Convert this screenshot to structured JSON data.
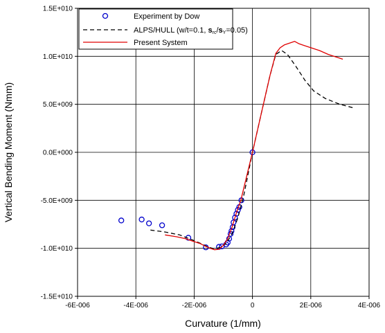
{
  "chart_data": {
    "type": "line",
    "xlabel": "Curvature (1/mm)",
    "ylabel": "Vertical Bending Moment (Nmm)",
    "xlim": [
      -6e-06,
      4e-06
    ],
    "ylim": [
      -15000000000.0,
      15000000000.0
    ],
    "x_ticks": [
      -6e-06,
      -4e-06,
      -2e-06,
      0,
      2e-06,
      4e-06
    ],
    "x_tick_labels": [
      "-6E-006",
      "-4E-006",
      "-2E-006",
      "0",
      "2E-006",
      "4E-006"
    ],
    "y_ticks": [
      -15000000000.0,
      -10000000000.0,
      -5000000000.0,
      0,
      5000000000.0,
      10000000000.0,
      15000000000.0
    ],
    "y_tick_labels": [
      "-1.5E+010",
      "-1.0E+010",
      "-5.0E+009",
      "0.0E+000",
      "5.0E+009",
      "1.0E+010",
      "1.5E+010"
    ],
    "grid": true,
    "legend_position": "top-left",
    "series": [
      {
        "name": "Experiment by Dow",
        "style": "markers",
        "color": "#0000cc",
        "x": [
          -4.5e-06,
          -3.8e-06,
          -3.55e-06,
          -3.1e-06,
          -2.2e-06,
          -1.6e-06,
          -1.15e-06,
          -1.05e-06,
          -9e-07,
          -8.5e-07,
          -8e-07,
          -7.5e-07,
          -7.2e-07,
          -6.8e-07,
          -6.5e-07,
          -6e-07,
          -5.5e-07,
          -5e-07,
          -4.5e-07,
          -3.8e-07,
          0
        ],
        "y": [
          -7100000000.0,
          -7000000000.0,
          -7400000000.0,
          -7600000000.0,
          -8900000000.0,
          -9900000000.0,
          -9850000000.0,
          -9800000000.0,
          -9600000000.0,
          -9400000000.0,
          -9000000000.0,
          -8500000000.0,
          -8200000000.0,
          -7800000000.0,
          -7300000000.0,
          -6800000000.0,
          -6400000000.0,
          -6000000000.0,
          -5700000000.0,
          -5000000000.0,
          0
        ]
      },
      {
        "name": "ALPS/HULL (w/t=0.1, s_rc/s_Y=0.05)",
        "style": "dashed",
        "color": "#000000",
        "x": [
          -3.5e-06,
          -3e-06,
          -2.5e-06,
          -2e-06,
          -1.7e-06,
          -1.5e-06,
          -1.3e-06,
          -1.1e-06,
          -9e-07,
          -7e-07,
          -5e-07,
          -3e-07,
          0,
          3e-07,
          6e-07,
          8e-07,
          1e-06,
          1.2e-06,
          1.5e-06,
          1.8e-06,
          2.1e-06,
          2.5e-06,
          3e-06,
          3.5e-06
        ],
        "y": [
          -8100000000.0,
          -8300000000.0,
          -8600000000.0,
          -9200000000.0,
          -9600000000.0,
          -9900000000.0,
          -10050000000.0,
          -9900000000.0,
          -9500000000.0,
          -8500000000.0,
          -6800000000.0,
          -4500000000.0,
          0,
          4000000000.0,
          8000000000.0,
          10200000000.0,
          10600000000.0,
          10200000000.0,
          8900000000.0,
          7500000000.0,
          6400000000.0,
          5600000000.0,
          5000000000.0,
          4600000000.0
        ]
      },
      {
        "name": "Present System",
        "style": "solid",
        "color": "#e00000",
        "x": [
          -3e-06,
          -2.6e-06,
          -2.3e-06,
          -2.1e-06,
          -1.8e-06,
          -1.6e-06,
          -1.45e-06,
          -1.3e-06,
          -1.15e-06,
          -1e-06,
          -8.5e-07,
          -7e-07,
          -5.5e-07,
          -4e-07,
          -2e-07,
          0,
          3e-07,
          6e-07,
          8e-07,
          9.5e-07,
          1.1e-06,
          1.3e-06,
          1.45e-06,
          1.6e-06,
          1.8e-06,
          2e-06,
          2.3e-06,
          2.6e-06,
          2.9e-06,
          3.1e-06
        ],
        "y": [
          -8600000000.0,
          -8800000000.0,
          -9000000000.0,
          -9200000000.0,
          -9500000000.0,
          -9800000000.0,
          -10000000000.0,
          -10150000000.0,
          -10100000000.0,
          -9700000000.0,
          -9000000000.0,
          -7800000000.0,
          -6300000000.0,
          -5000000000.0,
          -2500000000.0,
          0,
          4000000000.0,
          8000000000.0,
          10300000000.0,
          10900000000.0,
          11200000000.0,
          11400000000.0,
          11550000000.0,
          11300000000.0,
          11100000000.0,
          10900000000.0,
          10600000000.0,
          10200000000.0,
          9900000000.0,
          9700000000.0
        ]
      }
    ]
  },
  "legend": {
    "items": [
      {
        "label": "Experiment by Dow"
      },
      {
        "label_prefix": "ALPS/HULL (w/t=0.1, ",
        "s1": "s",
        "s1_sub": "rc",
        "slash": "/",
        "s2": "s",
        "s2_sub": "Y",
        "label_suffix": "=0.05)"
      },
      {
        "label": "Present System"
      }
    ]
  }
}
